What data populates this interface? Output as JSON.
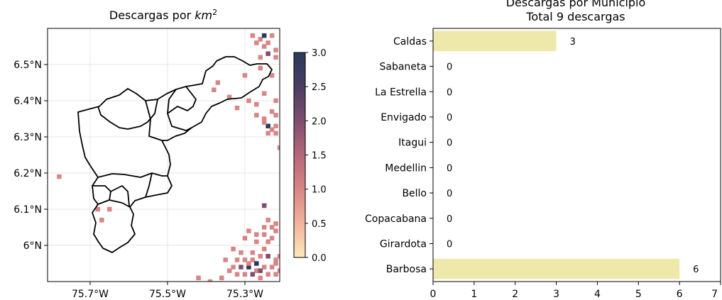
{
  "chart_data": [
    {
      "type": "heatmap",
      "title_text": "Descargas por ",
      "title_math": "km",
      "title_sup": "2",
      "x_ticks": [
        "75.7°W",
        "75.5°W",
        "75.3°W"
      ],
      "x_tick_values": [
        -75.7,
        -75.5,
        -75.3
      ],
      "y_ticks": [
        "6°N",
        "6.1°N",
        "6.2°N",
        "6.3°N",
        "6.4°N",
        "6.5°N"
      ],
      "y_tick_values": [
        6.0,
        6.1,
        6.2,
        6.3,
        6.4,
        6.5
      ],
      "xlim": [
        -75.81,
        -75.21
      ],
      "ylim": [
        5.9,
        6.6
      ],
      "grid": true,
      "colorbar": {
        "ticks": [
          "0.0",
          "0.5",
          "1.0",
          "1.5",
          "2.0",
          "2.5",
          "3.0"
        ],
        "tick_values": [
          0,
          0.5,
          1,
          1.5,
          2,
          2.5,
          3
        ],
        "range": [
          0,
          3
        ],
        "colors": [
          "#fce9bd",
          "#f2b39c",
          "#d98585",
          "#b5677a",
          "#7e4e6f",
          "#4a3e62",
          "#2b3a5a"
        ]
      },
      "cells": [
        [
          -75.25,
          6.55,
          1
        ],
        [
          -75.27,
          6.56,
          1
        ],
        [
          -75.24,
          6.56,
          1
        ],
        [
          -75.26,
          6.57,
          1
        ],
        [
          -75.23,
          6.58,
          1
        ],
        [
          -75.25,
          6.58,
          3
        ],
        [
          -75.28,
          6.58,
          1
        ],
        [
          -75.24,
          6.53,
          2
        ],
        [
          -75.26,
          6.52,
          1
        ],
        [
          -75.22,
          6.54,
          1
        ],
        [
          -75.22,
          6.52,
          1
        ],
        [
          -75.3,
          6.47,
          1
        ],
        [
          -75.26,
          6.49,
          1
        ],
        [
          -75.23,
          6.47,
          1
        ],
        [
          -75.37,
          6.45,
          1
        ],
        [
          -75.34,
          6.41,
          1
        ],
        [
          -75.29,
          6.4,
          1
        ],
        [
          -75.25,
          6.42,
          1
        ],
        [
          -75.22,
          6.4,
          1
        ],
        [
          -75.32,
          6.38,
          1
        ],
        [
          -75.27,
          6.36,
          1
        ],
        [
          -75.25,
          6.35,
          1
        ],
        [
          -75.24,
          6.33,
          3
        ],
        [
          -75.23,
          6.32,
          1
        ],
        [
          -75.22,
          6.33,
          1
        ],
        [
          -75.24,
          6.31,
          1
        ],
        [
          -75.22,
          6.31,
          1
        ],
        [
          -75.25,
          6.34,
          1
        ],
        [
          -75.21,
          6.27,
          1
        ],
        [
          -75.38,
          6.43,
          1
        ],
        [
          -75.23,
          6.37,
          1
        ],
        [
          -75.22,
          6.36,
          1
        ],
        [
          -75.27,
          6.39,
          1
        ],
        [
          -75.78,
          6.19,
          1
        ],
        [
          -75.68,
          6.1,
          1
        ],
        [
          -75.65,
          6.1,
          1
        ],
        [
          -75.67,
          6.07,
          1
        ],
        [
          -75.25,
          6.11,
          2
        ],
        [
          -75.24,
          6.07,
          1
        ],
        [
          -75.22,
          6.06,
          1
        ],
        [
          -75.23,
          6.05,
          1
        ],
        [
          -75.25,
          6.05,
          1
        ],
        [
          -75.22,
          6.04,
          1
        ],
        [
          -75.29,
          6.04,
          1
        ],
        [
          -75.27,
          6.03,
          1
        ],
        [
          -75.25,
          6.03,
          1
        ],
        [
          -75.23,
          6.02,
          1
        ],
        [
          -75.3,
          6.02,
          1
        ],
        [
          -75.27,
          6.01,
          1
        ],
        [
          -75.24,
          6.01,
          1
        ],
        [
          -75.33,
          5.99,
          1
        ],
        [
          -75.31,
          5.98,
          1
        ],
        [
          -75.28,
          5.98,
          1
        ],
        [
          -75.25,
          5.99,
          1
        ],
        [
          -75.24,
          5.97,
          2
        ],
        [
          -75.22,
          5.96,
          1
        ],
        [
          -75.26,
          5.97,
          1
        ],
        [
          -75.28,
          5.96,
          1
        ],
        [
          -75.3,
          5.96,
          1
        ],
        [
          -75.32,
          5.96,
          1
        ],
        [
          -75.33,
          5.94,
          1
        ],
        [
          -75.31,
          5.94,
          2
        ],
        [
          -75.29,
          5.94,
          3
        ],
        [
          -75.27,
          5.93,
          1
        ],
        [
          -75.25,
          5.94,
          1
        ],
        [
          -75.23,
          5.94,
          1
        ],
        [
          -75.22,
          5.95,
          1
        ],
        [
          -75.28,
          5.92,
          2
        ],
        [
          -75.3,
          5.92,
          1
        ],
        [
          -75.32,
          5.92,
          1
        ],
        [
          -75.26,
          5.91,
          1
        ],
        [
          -75.24,
          5.92,
          1
        ],
        [
          -75.22,
          5.92,
          1
        ],
        [
          -75.34,
          5.93,
          1
        ],
        [
          -75.36,
          5.91,
          1
        ],
        [
          -75.39,
          5.9,
          1
        ],
        [
          -75.42,
          5.91,
          1
        ],
        [
          -75.27,
          5.95,
          3
        ],
        [
          -75.26,
          5.93,
          2
        ],
        [
          -75.29,
          5.95,
          1
        ],
        [
          -75.35,
          5.96,
          1
        ],
        [
          -75.21,
          5.97,
          1
        ],
        [
          -75.21,
          5.93,
          1
        ]
      ]
    },
    {
      "type": "bar",
      "orientation": "horizontal",
      "title": "Descargas por Municipio",
      "subtitle": "Total 9 descargas",
      "categories": [
        "Caldas",
        "Sabaneta",
        "La Estrella",
        "Envigado",
        "Itagui",
        "Medellin",
        "Bello",
        "Copacabana",
        "Girardota",
        "Barbosa"
      ],
      "values": [
        3,
        0,
        0,
        0,
        0,
        0,
        0,
        0,
        0,
        6
      ],
      "value_labels": [
        "3",
        "0",
        "0",
        "0",
        "0",
        "0",
        "0",
        "0",
        "0",
        "6"
      ],
      "x_ticks": [
        "0",
        "1",
        "2",
        "3",
        "4",
        "5",
        "6",
        "7"
      ],
      "xlim": [
        0,
        7
      ],
      "bar_color": "#eee8aa"
    }
  ]
}
